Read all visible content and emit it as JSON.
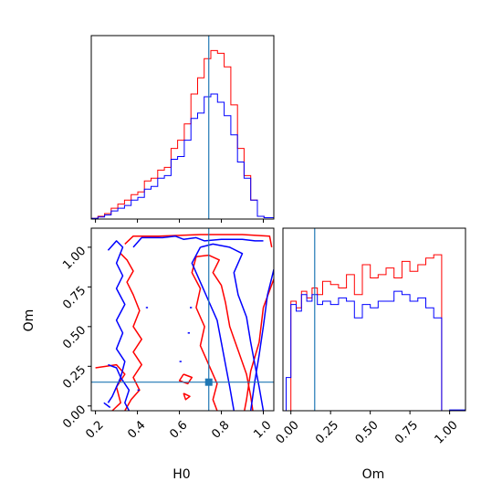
{
  "chart_data": {
    "type": "corner",
    "parameters": [
      "H0",
      "Om"
    ],
    "truths": {
      "H0": 0.74,
      "Om": 0.15
    },
    "colors": {
      "series_a": "#ff0000",
      "series_b": "#0000ff",
      "truth": "#1f77b4"
    },
    "h0_hist": {
      "xlim": [
        0.18,
        1.05
      ],
      "edges": [
        0.18,
        0.2117,
        0.2433,
        0.275,
        0.3067,
        0.3383,
        0.37,
        0.4017,
        0.4333,
        0.465,
        0.4967,
        0.5283,
        0.56,
        0.5917,
        0.6233,
        0.655,
        0.6867,
        0.7183,
        0.75,
        0.7817,
        0.8133,
        0.845,
        0.8767,
        0.9083,
        0.94,
        0.9717,
        1.0033,
        1.05
      ],
      "series": [
        {
          "values": [
            0.5,
            2,
            4,
            8,
            11,
            14,
            18,
            20,
            28,
            30,
            36,
            38,
            52,
            58,
            70,
            92,
            104,
            118,
            124,
            122,
            112,
            84,
            52,
            32,
            14,
            2,
            1
          ]
        },
        {
          "values": [
            0.5,
            1.5,
            3,
            6,
            8,
            10,
            14,
            16,
            22,
            24,
            30,
            32,
            44,
            46,
            58,
            74,
            78,
            90,
            92,
            86,
            76,
            62,
            42,
            30,
            14,
            2,
            1
          ]
        }
      ],
      "ymax": 135,
      "ticks": [
        0.2,
        0.4,
        0.6,
        0.8,
        1.0
      ]
    },
    "om_hist": {
      "xlim": [
        -0.05,
        1.1
      ],
      "edges": [
        -0.03,
        0.0,
        0.0333,
        0.0667,
        0.1,
        0.1333,
        0.1667,
        0.2,
        0.25,
        0.3,
        0.35,
        0.4,
        0.45,
        0.5,
        0.55,
        0.6,
        0.65,
        0.7,
        0.75,
        0.8,
        0.85,
        0.9,
        0.95,
        1.0,
        1.05,
        1.1
      ],
      "series": [
        {
          "values": [
            0,
            66,
            62,
            72,
            68,
            74,
            70,
            78,
            76,
            74,
            82,
            70,
            88,
            80,
            82,
            86,
            80,
            90,
            84,
            88,
            92,
            94,
            0,
            0,
            0
          ]
        },
        {
          "values": [
            20,
            64,
            60,
            70,
            66,
            70,
            64,
            66,
            64,
            68,
            66,
            56,
            64,
            62,
            66,
            66,
            72,
            70,
            66,
            68,
            62,
            56,
            0,
            0.5,
            0.5
          ]
        }
      ],
      "ymax": 110,
      "ticks": [
        0.0,
        0.25,
        0.5,
        0.75,
        1.0
      ],
      "tick_labels": [
        "0.00",
        "0.25",
        "0.50",
        "0.75",
        "1.00"
      ],
      "xlabel": "Om"
    },
    "contour": {
      "xlim": [
        0.18,
        1.05
      ],
      "ylim": [
        -0.03,
        1.12
      ],
      "xticks": [
        0.2,
        0.4,
        0.6,
        0.8,
        1.0
      ],
      "xtick_labels": [
        "0.2",
        "0.4",
        "0.6",
        "0.8",
        "1.0"
      ],
      "yticks": [
        0.0,
        0.25,
        0.5,
        0.75,
        1.0
      ],
      "ytick_labels": [
        "0.00",
        "0.25",
        "0.50",
        "0.75",
        "1.00"
      ],
      "xlabel": "H0",
      "ylabel": "Om",
      "contours": [
        {
          "series": 0,
          "points": [
            [
              0.2,
              0.24
            ],
            [
              0.3,
              0.26
            ],
            [
              0.34,
              0.2
            ],
            [
              0.3,
              0.12
            ],
            [
              0.32,
              0.02
            ],
            [
              0.28,
              -0.03
            ]
          ]
        },
        {
          "series": 0,
          "points": [
            [
              0.34,
              1.02
            ],
            [
              0.38,
              1.07
            ],
            [
              0.5,
              1.07
            ],
            [
              0.7,
              1.08
            ],
            [
              0.9,
              1.08
            ],
            [
              1.03,
              1.07
            ],
            [
              1.04,
              1.0
            ]
          ]
        },
        {
          "series": 0,
          "points": [
            [
              0.32,
              0.96
            ],
            [
              0.35,
              0.92
            ],
            [
              0.38,
              0.85
            ],
            [
              0.35,
              0.78
            ],
            [
              0.38,
              0.7
            ],
            [
              0.41,
              0.6
            ],
            [
              0.38,
              0.5
            ],
            [
              0.42,
              0.42
            ],
            [
              0.38,
              0.34
            ],
            [
              0.42,
              0.26
            ],
            [
              0.38,
              0.18
            ],
            [
              0.41,
              0.1
            ],
            [
              0.37,
              0.04
            ],
            [
              0.34,
              -0.03
            ]
          ]
        },
        {
          "series": 0,
          "points": [
            [
              0.68,
              0.94
            ],
            [
              0.74,
              0.95
            ],
            [
              0.79,
              0.92
            ],
            [
              0.76,
              0.84
            ],
            [
              0.8,
              0.76
            ],
            [
              0.82,
              0.65
            ],
            [
              0.84,
              0.5
            ],
            [
              0.88,
              0.35
            ],
            [
              0.92,
              0.2
            ],
            [
              0.94,
              0.06
            ],
            [
              0.95,
              -0.03
            ]
          ]
        },
        {
          "series": 0,
          "points": [
            [
              0.68,
              0.94
            ],
            [
              0.66,
              0.84
            ],
            [
              0.7,
              0.74
            ],
            [
              0.68,
              0.62
            ],
            [
              0.72,
              0.5
            ],
            [
              0.7,
              0.38
            ],
            [
              0.74,
              0.26
            ],
            [
              0.78,
              0.14
            ],
            [
              0.76,
              0.04
            ],
            [
              0.78,
              -0.03
            ]
          ]
        },
        {
          "series": 0,
          "points": [
            [
              1.05,
              0.8
            ],
            [
              1.0,
              0.62
            ],
            [
              0.98,
              0.4
            ],
            [
              0.94,
              0.22
            ],
            [
              0.92,
              0.04
            ],
            [
              0.91,
              -0.03
            ]
          ]
        },
        {
          "series": 0,
          "points": [
            [
              0.62,
              0.2
            ],
            [
              0.66,
              0.18
            ],
            [
              0.64,
              0.14
            ],
            [
              0.6,
              0.16
            ],
            [
              0.62,
              0.2
            ]
          ]
        },
        {
          "series": 0,
          "points": [
            [
              0.62,
              0.08
            ],
            [
              0.65,
              0.06
            ],
            [
              0.63,
              0.04
            ],
            [
              0.62,
              0.08
            ]
          ]
        },
        {
          "series": 1,
          "points": [
            [
              0.26,
              0.26
            ],
            [
              0.3,
              0.24
            ],
            [
              0.32,
              0.18
            ],
            [
              0.3,
              0.12
            ],
            [
              0.28,
              0.06
            ],
            [
              0.26,
              0.02
            ]
          ]
        },
        {
          "series": 1,
          "points": [
            [
              0.24,
              0.02
            ],
            [
              0.27,
              -0.01
            ]
          ]
        },
        {
          "series": 1,
          "points": [
            [
              0.26,
              0.98
            ],
            [
              0.3,
              1.04
            ],
            [
              0.33,
              1.0
            ],
            [
              0.3,
              0.9
            ],
            [
              0.33,
              0.82
            ],
            [
              0.3,
              0.74
            ],
            [
              0.34,
              0.64
            ],
            [
              0.3,
              0.54
            ],
            [
              0.33,
              0.46
            ],
            [
              0.3,
              0.36
            ],
            [
              0.34,
              0.28
            ],
            [
              0.32,
              0.18
            ],
            [
              0.36,
              0.1
            ],
            [
              0.34,
              0.02
            ],
            [
              0.36,
              -0.03
            ]
          ]
        },
        {
          "series": 1,
          "points": [
            [
              0.38,
              1.0
            ],
            [
              0.42,
              1.06
            ],
            [
              0.52,
              1.06
            ],
            [
              0.58,
              1.07
            ],
            [
              0.62,
              1.05
            ],
            [
              0.68,
              1.06
            ],
            [
              0.72,
              1.04
            ],
            [
              0.8,
              1.05
            ],
            [
              0.9,
              1.05
            ],
            [
              0.96,
              1.04
            ],
            [
              1.0,
              1.04
            ]
          ]
        },
        {
          "series": 1,
          "points": [
            [
              0.7,
              1.0
            ],
            [
              0.76,
              1.02
            ],
            [
              0.84,
              1.0
            ],
            [
              0.9,
              0.96
            ],
            [
              0.86,
              0.84
            ],
            [
              0.88,
              0.7
            ],
            [
              0.92,
              0.56
            ],
            [
              0.94,
              0.4
            ],
            [
              0.96,
              0.26
            ],
            [
              0.98,
              0.12
            ],
            [
              1.0,
              -0.03
            ]
          ]
        },
        {
          "series": 1,
          "points": [
            [
              0.7,
              1.0
            ],
            [
              0.66,
              0.9
            ],
            [
              0.7,
              0.78
            ],
            [
              0.74,
              0.66
            ],
            [
              0.78,
              0.54
            ],
            [
              0.8,
              0.4
            ],
            [
              0.82,
              0.26
            ],
            [
              0.84,
              0.12
            ],
            [
              0.86,
              -0.03
            ]
          ]
        },
        {
          "series": 1,
          "points": [
            [
              1.05,
              0.86
            ],
            [
              1.02,
              0.7
            ],
            [
              1.0,
              0.5
            ],
            [
              0.98,
              0.32
            ],
            [
              0.96,
              0.16
            ],
            [
              0.94,
              -0.03
            ]
          ]
        },
        {
          "series": 1,
          "points": [
            [
              0.64,
              0.46
            ],
            [
              0.65,
              0.46
            ]
          ]
        },
        {
          "series": 1,
          "points": [
            [
              0.65,
              0.62
            ],
            [
              0.66,
              0.62
            ]
          ]
        },
        {
          "series": 1,
          "points": [
            [
              0.6,
              0.28
            ],
            [
              0.61,
              0.28
            ]
          ]
        },
        {
          "series": 1,
          "points": [
            [
              0.44,
              0.62
            ],
            [
              0.45,
              0.62
            ]
          ]
        },
        {
          "series": 1,
          "points": [
            [
              0.4,
              0.1
            ],
            [
              0.41,
              0.1
            ]
          ]
        }
      ]
    }
  }
}
